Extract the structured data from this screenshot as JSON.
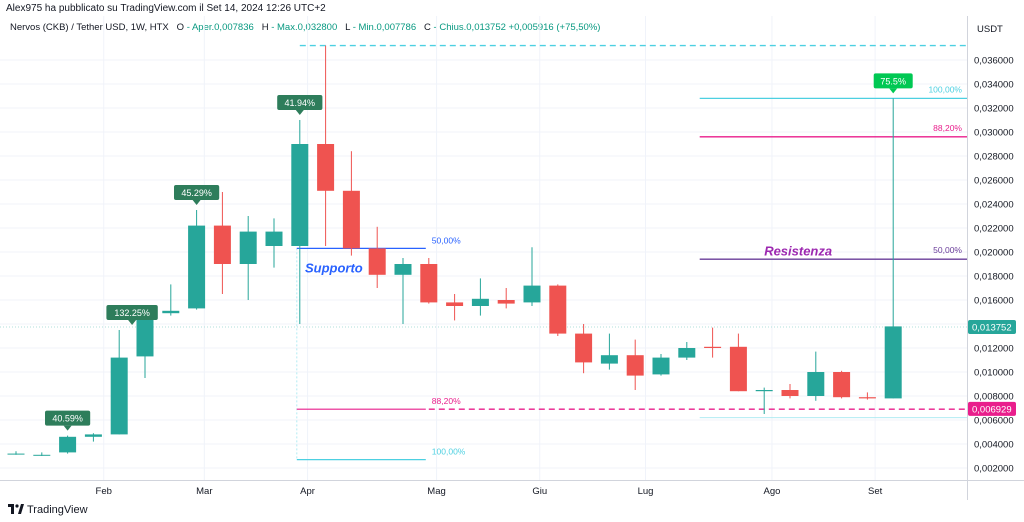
{
  "header": {
    "published": "Alex975 ha pubblicato su TradingView.com il Set 14, 2024 12:26 UTC+2",
    "symbol": "Nervos (CKB) / Tether USD, 1W, HTX",
    "open_label": "O",
    "open": "- Aper.0,007836",
    "high_label": "H",
    "high": "- Max.0,032800",
    "low_label": "L",
    "low": "- Min.0,007786",
    "close_label": "C",
    "close": "- Chius.0,013752",
    "change": "+0,005916 (+75,50%)"
  },
  "footer": {
    "brand": "TradingView"
  },
  "colors": {
    "up": "#26a69a",
    "down": "#ef5350",
    "fib_cyan": "#4dd0e1",
    "fib_pink": "#e91e8c",
    "fib_purple": "#6a3d9a",
    "text_blue": "#2962ff"
  },
  "chart_data": {
    "type": "candlestick",
    "currency_label": "USDT",
    "y_ticks": [
      "0,036000",
      "0,034000",
      "0,032000",
      "0,030000",
      "0,028000",
      "0,026000",
      "0,024000",
      "0,022000",
      "0,020000",
      "0,018000",
      "0,016000",
      "0,014000",
      "0,012000",
      "0,010000",
      "0,008000",
      "0,006000",
      "0,004000",
      "0,002000"
    ],
    "ylim": [
      0.0,
      0.038
    ],
    "x_months": [
      {
        "label": "Feb",
        "week": 3.4
      },
      {
        "label": "Mar",
        "week": 7.3
      },
      {
        "label": "Apr",
        "week": 11.3
      },
      {
        "label": "Mag",
        "week": 16.3
      },
      {
        "label": "Giu",
        "week": 20.3
      },
      {
        "label": "Lug",
        "week": 24.4
      },
      {
        "label": "Ago",
        "week": 29.3
      },
      {
        "label": "Set",
        "week": 33.3
      }
    ],
    "candles": [
      {
        "w": 0,
        "o": 0.0032,
        "h": 0.0034,
        "l": 0.0031,
        "c": 0.0032
      },
      {
        "w": 1,
        "o": 0.0031,
        "h": 0.0033,
        "l": 0.003,
        "c": 0.0031
      },
      {
        "w": 2,
        "o": 0.0033,
        "h": 0.0047,
        "l": 0.0032,
        "c": 0.0046
      },
      {
        "w": 3,
        "o": 0.0046,
        "h": 0.0049,
        "l": 0.0042,
        "c": 0.0048
      },
      {
        "w": 4,
        "o": 0.0048,
        "h": 0.0135,
        "l": 0.0048,
        "c": 0.0112
      },
      {
        "w": 5,
        "o": 0.0113,
        "h": 0.015,
        "l": 0.0095,
        "c": 0.0148
      },
      {
        "w": 6,
        "o": 0.0149,
        "h": 0.0173,
        "l": 0.0147,
        "c": 0.0151
      },
      {
        "w": 7,
        "o": 0.0153,
        "h": 0.0235,
        "l": 0.0152,
        "c": 0.0222
      },
      {
        "w": 8,
        "o": 0.0222,
        "h": 0.025,
        "l": 0.0165,
        "c": 0.019
      },
      {
        "w": 9,
        "o": 0.019,
        "h": 0.023,
        "l": 0.016,
        "c": 0.0217
      },
      {
        "w": 10,
        "o": 0.0205,
        "h": 0.0228,
        "l": 0.0187,
        "c": 0.0217
      },
      {
        "w": 11,
        "o": 0.0205,
        "h": 0.031,
        "l": 0.014,
        "c": 0.029
      },
      {
        "w": 12,
        "o": 0.029,
        "h": 0.0372,
        "l": 0.0205,
        "c": 0.0251
      },
      {
        "w": 13,
        "o": 0.0251,
        "h": 0.0284,
        "l": 0.0197,
        "c": 0.0203
      },
      {
        "w": 14,
        "o": 0.0203,
        "h": 0.0221,
        "l": 0.017,
        "c": 0.0181
      },
      {
        "w": 15,
        "o": 0.0181,
        "h": 0.0195,
        "l": 0.014,
        "c": 0.019
      },
      {
        "w": 16,
        "o": 0.019,
        "h": 0.0195,
        "l": 0.0157,
        "c": 0.0158
      },
      {
        "w": 17,
        "o": 0.0158,
        "h": 0.0165,
        "l": 0.0143,
        "c": 0.0155
      },
      {
        "w": 18,
        "o": 0.0155,
        "h": 0.0178,
        "l": 0.0147,
        "c": 0.0161
      },
      {
        "w": 19,
        "o": 0.016,
        "h": 0.017,
        "l": 0.0153,
        "c": 0.0157
      },
      {
        "w": 20,
        "o": 0.0158,
        "h": 0.0204,
        "l": 0.0155,
        "c": 0.0172
      },
      {
        "w": 21,
        "o": 0.0172,
        "h": 0.0173,
        "l": 0.013,
        "c": 0.0132
      },
      {
        "w": 22,
        "o": 0.0132,
        "h": 0.014,
        "l": 0.0099,
        "c": 0.0108
      },
      {
        "w": 23,
        "o": 0.0107,
        "h": 0.0132,
        "l": 0.0102,
        "c": 0.0114
      },
      {
        "w": 24,
        "o": 0.0114,
        "h": 0.0127,
        "l": 0.0085,
        "c": 0.0097
      },
      {
        "w": 25,
        "o": 0.0098,
        "h": 0.0115,
        "l": 0.0097,
        "c": 0.0112
      },
      {
        "w": 26,
        "o": 0.0112,
        "h": 0.0125,
        "l": 0.011,
        "c": 0.012
      },
      {
        "w": 27,
        "o": 0.0121,
        "h": 0.0137,
        "l": 0.0112,
        "c": 0.012
      },
      {
        "w": 28,
        "o": 0.0121,
        "h": 0.0132,
        "l": 0.0084,
        "c": 0.0084
      },
      {
        "w": 29,
        "o": 0.0084,
        "h": 0.0087,
        "l": 0.0065,
        "c": 0.0085
      },
      {
        "w": 30,
        "o": 0.0085,
        "h": 0.009,
        "l": 0.0078,
        "c": 0.008
      },
      {
        "w": 31,
        "o": 0.008,
        "h": 0.0117,
        "l": 0.0076,
        "c": 0.01
      },
      {
        "w": 32,
        "o": 0.01,
        "h": 0.0101,
        "l": 0.0078,
        "c": 0.0079
      },
      {
        "w": 33,
        "o": 0.0079,
        "h": 0.0083,
        "l": 0.0077,
        "c": 0.0078
      },
      {
        "w": 34,
        "o": 0.0078,
        "h": 0.0328,
        "l": 0.0078,
        "c": 0.0138
      }
    ],
    "gain_labels": [
      {
        "text": "40.59%",
        "w": 2,
        "price": 0.0047
      },
      {
        "text": "132.25%",
        "w": 4.5,
        "price": 0.0135
      },
      {
        "text": "45.29%",
        "w": 7,
        "price": 0.0235
      },
      {
        "text": "41.94%",
        "w": 11,
        "price": 0.031
      },
      {
        "text": "75.5%",
        "w": 34,
        "price": 0.0328
      }
    ],
    "fib_left": {
      "from_w": 11,
      "to_w": 16,
      "levels": [
        {
          "label": "50,00%",
          "price": 0.0203,
          "color": "#2962ff"
        },
        {
          "label": "88,20%",
          "price": 0.0069,
          "color": "#e91e8c"
        },
        {
          "label": "100,00%",
          "price": 0.0027,
          "color": "#4dd0e1"
        }
      ]
    },
    "fib_right": {
      "from_w": 26.5,
      "to_w": 35.7,
      "levels": [
        {
          "label": "100,00%",
          "price": 0.0328,
          "color": "#4dd0e1"
        },
        {
          "label": "88,20%",
          "price": 0.0296,
          "color": "#e91e8c"
        },
        {
          "label": "50,00%",
          "price": 0.0194,
          "color": "#6a3d9a"
        }
      ]
    },
    "annotations": [
      {
        "text": "Supporto",
        "w": 11.2,
        "price": 0.0183,
        "color": "#2962ff"
      },
      {
        "text": "Resistenza",
        "w": 29.0,
        "price": 0.0197,
        "color": "#9c27b0"
      }
    ],
    "horizontal_lines": [
      {
        "price": 0.0372,
        "color": "#4dd0e1",
        "style": "dashed",
        "from_w": 11
      },
      {
        "price": 0.0069,
        "color": "#e91e8c",
        "style": "dashed",
        "from_w": 16
      }
    ],
    "price_tags": [
      {
        "text": "0,013752",
        "price": 0.013752,
        "bg": "#26a69a"
      },
      {
        "text": "0,006929",
        "price": 0.006929,
        "bg": "#e91e8c"
      }
    ]
  }
}
